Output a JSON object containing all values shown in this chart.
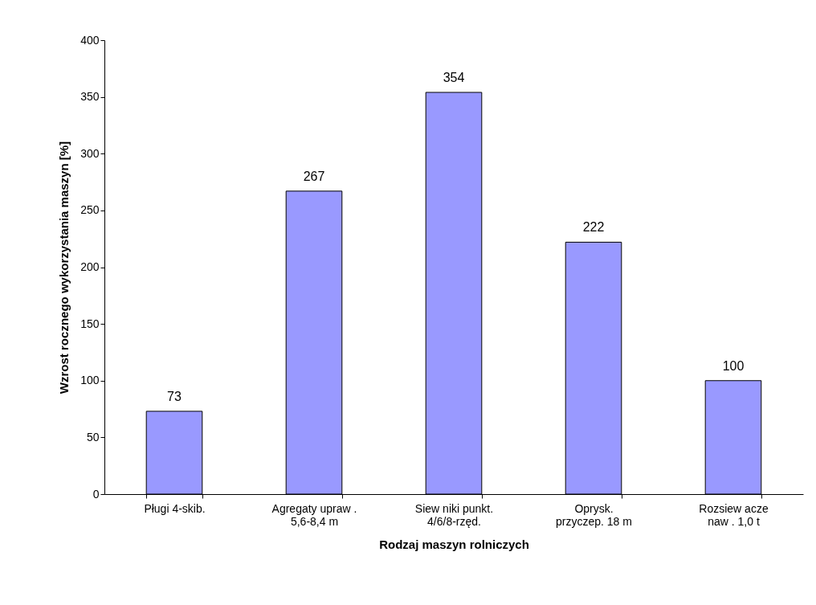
{
  "chart_data": {
    "type": "bar",
    "xlabel": "Rodzaj maszyn rolniczych",
    "ylabel": "Wzrost rocznego wykorzystania maszyn [%]",
    "categories": [
      "Pługi 4-skib.",
      "Agregaty upraw .\n5,6-8,4 m",
      "Siew niki punkt.\n4/6/8-rzęd.",
      "Oprysk.\nprzyczep. 18 m",
      "Rozsiew acze\nnaw . 1,0 t"
    ],
    "values": [
      73,
      267,
      354,
      222,
      100
    ],
    "color": "#9999ff",
    "ylim": [
      0,
      400
    ],
    "yticks": [
      0,
      50,
      100,
      150,
      200,
      250,
      300,
      350,
      400
    ],
    "grid": false,
    "data_labels": true
  }
}
